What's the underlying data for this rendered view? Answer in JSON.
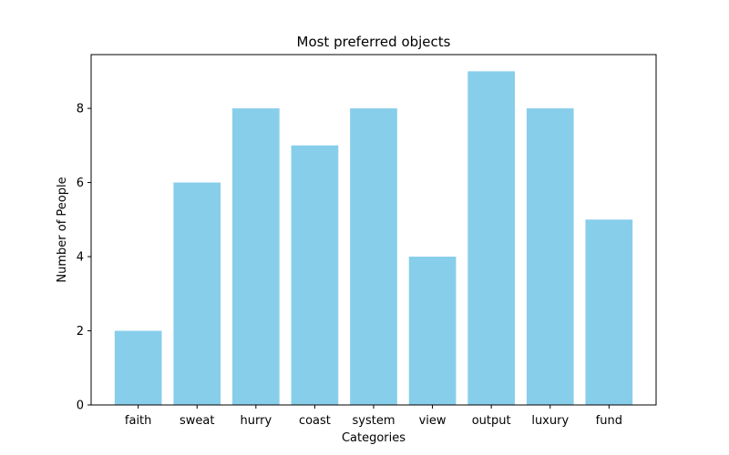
{
  "chart_data": {
    "type": "bar",
    "title": "Most preferred objects",
    "xlabel": "Categories",
    "ylabel": "Number of People",
    "categories": [
      "faith",
      "sweat",
      "hurry",
      "coast",
      "system",
      "view",
      "output",
      "luxury",
      "fund"
    ],
    "values": [
      2,
      6,
      8,
      7,
      8,
      4,
      9,
      8,
      5
    ],
    "ylim": [
      0,
      9.45
    ],
    "yticks": [
      0,
      2,
      4,
      6,
      8
    ],
    "grid": false,
    "legend": "none",
    "bar_color": "#87ceeb"
  }
}
